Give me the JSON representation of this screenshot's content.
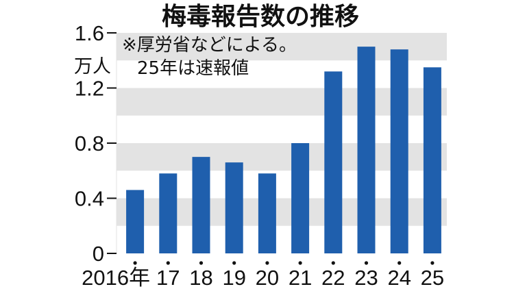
{
  "chart_data": {
    "type": "bar",
    "title": "梅毒報告数の推移",
    "unit_label": "万人",
    "note_lines": [
      "※厚労省などによる。",
      "25年は速報値"
    ],
    "categories": [
      "2016年",
      "17",
      "18",
      "19",
      "20",
      "21",
      "22",
      "23",
      "24",
      "25"
    ],
    "values": [
      0.46,
      0.58,
      0.7,
      0.66,
      0.58,
      0.8,
      1.32,
      1.5,
      1.48,
      1.35
    ],
    "ylim": [
      0,
      1.6
    ],
    "yticks": [
      0,
      0.4,
      0.8,
      1.2,
      1.6
    ],
    "ytick_labels": [
      "0",
      "0.4",
      "0.8",
      "1.2",
      "1.6"
    ],
    "grid": "alternating horizontal bands",
    "colors": {
      "bar": "#1f5fad",
      "band": "#e3e3e3",
      "text": "#111111"
    }
  }
}
